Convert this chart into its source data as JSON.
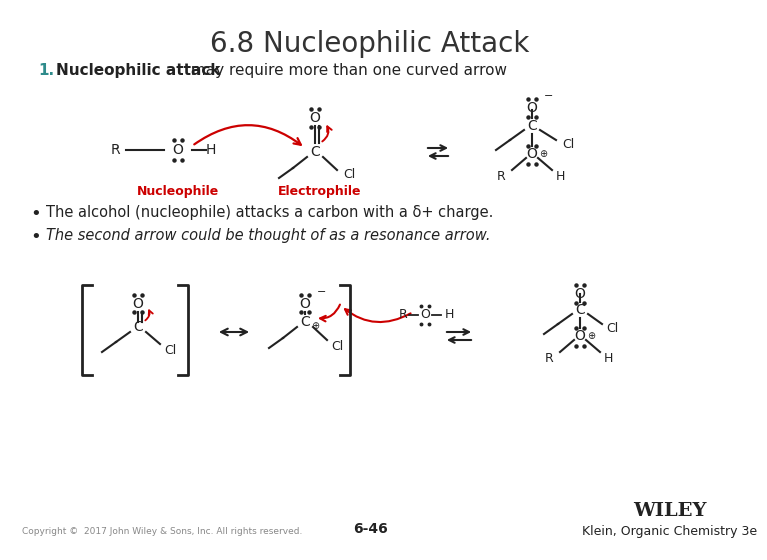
{
  "title": "6.8 Nucleophilic Attack",
  "title_fontsize": 20,
  "title_color": "#333333",
  "bg_color": "#ffffff",
  "point1_bold": "Nucleophilic attack",
  "point1_rest": " may require more than one curved arrow",
  "bullet1": "The alcohol (nucleophile) attacks a carbon with a δ+ charge.",
  "bullet2_italic": "The second arrow could be thought of as a resonance arrow.",
  "nucleophile_label": "Nucleophile",
  "electrophile_label": "Electrophile",
  "label_color": "#cc0000",
  "footer_left": "Copyright ©  2017 John Wiley & Sons, Inc. All rights reserved.",
  "footer_center": "6-46",
  "footer_right_bold": "WILEY",
  "footer_right": "Klein, Organic Chemistry 3e",
  "footer_color": "#888888",
  "arrow_color": "#cc0000",
  "structure_color": "#222222",
  "point1_number_color": "#2e8b8b"
}
